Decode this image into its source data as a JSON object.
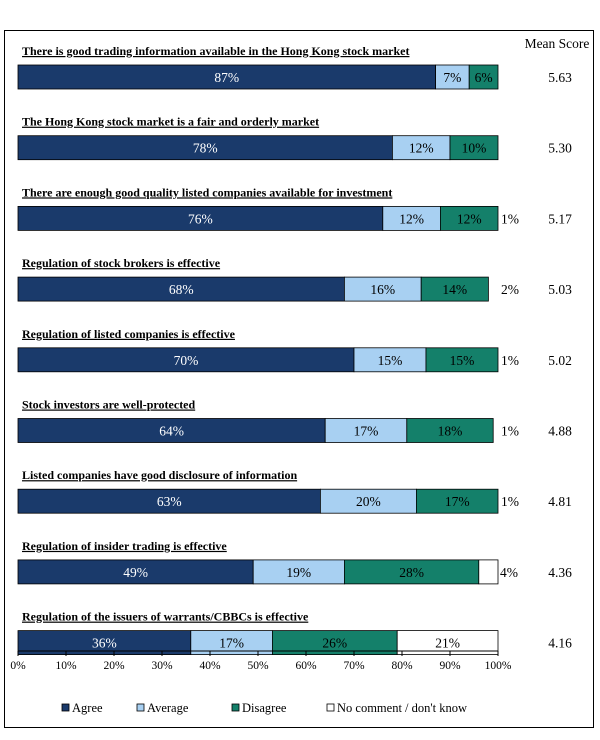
{
  "chart_data": {
    "type": "bar",
    "orientation": "horizontal",
    "stacked": true,
    "mean_header": "Mean Score",
    "xlim": [
      0,
      100
    ],
    "x_ticks": [
      "0%",
      "10%",
      "20%",
      "30%",
      "40%",
      "50%",
      "60%",
      "70%",
      "80%",
      "90%",
      "100%"
    ],
    "categories": [
      "There is good trading information available in the Hong Kong stock market",
      "The Hong Kong stock market is a fair and orderly market",
      "There are enough good quality listed companies available for investment",
      "Regulation of stock brokers is effective",
      "Regulation of listed companies is effective",
      "Stock investors are well-protected",
      "Listed companies have good disclosure of information",
      "Regulation of insider trading is effective",
      "Regulation of the issuers of warrants/CBBCs is effective"
    ],
    "series": [
      {
        "name": "Agree",
        "color": "#1a3a6b",
        "text_color": "#ffffff",
        "values": [
          87,
          78,
          76,
          68,
          70,
          64,
          63,
          49,
          36
        ]
      },
      {
        "name": "Average",
        "color": "#a8d0f2",
        "text_color": "#000000",
        "values": [
          7,
          12,
          12,
          16,
          15,
          17,
          20,
          19,
          17
        ]
      },
      {
        "name": "Disagree",
        "color": "#14806a",
        "text_color": "#000000",
        "values": [
          6,
          10,
          12,
          14,
          15,
          18,
          17,
          28,
          26
        ]
      },
      {
        "name": "No comment  /  don't know",
        "color": "#ffffff",
        "text_color": "#000000",
        "values": [
          0,
          0,
          1,
          2,
          1,
          1,
          1,
          4,
          21
        ]
      }
    ],
    "segment_labels": [
      [
        "87%",
        "7%",
        "6%",
        ""
      ],
      [
        "78%",
        "12%",
        "10%",
        ""
      ],
      [
        "76%",
        "12%",
        "12%",
        "1%"
      ],
      [
        "68%",
        "16%",
        "14%",
        "2%"
      ],
      [
        "70%",
        "15%",
        "15%",
        "1%"
      ],
      [
        "64%",
        "17%",
        "18%",
        "1%"
      ],
      [
        "63%",
        "20%",
        "17%",
        "1%"
      ],
      [
        "49%",
        "19%",
        "28%",
        "4%"
      ],
      [
        "36%",
        "17%",
        "26%",
        "21%"
      ]
    ],
    "mean_scores": [
      "5.63",
      "5.30",
      "5.17",
      "5.03",
      "5.02",
      "4.88",
      "4.81",
      "4.36",
      "4.16"
    ],
    "legend_position": "bottom"
  }
}
